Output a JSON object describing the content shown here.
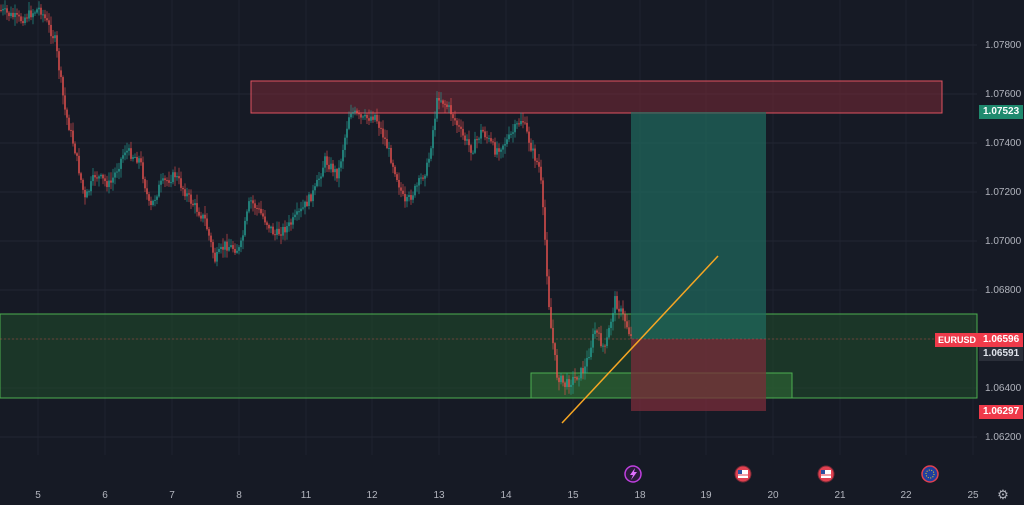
{
  "symbol": "EURUSD",
  "price_axis": {
    "ticks": [
      "1.07800",
      "1.07600",
      "1.07400",
      "1.07200",
      "1.07000",
      "1.06800",
      "1.06600",
      "1.06400",
      "1.06200"
    ],
    "tags": {
      "target": "1.07523",
      "last": "1.06596",
      "current": "1.06591",
      "stop": "1.06297"
    }
  },
  "time_axis": {
    "ticks": [
      "5",
      "6",
      "7",
      "8",
      "11",
      "12",
      "13",
      "14",
      "15",
      "18",
      "19",
      "20",
      "21",
      "22",
      "25"
    ]
  },
  "colors": {
    "background": "#161a25",
    "up": "#26a69a",
    "down": "#ef5350",
    "trendline": "#f5a623",
    "resistance_zone": "#7a2a36",
    "support_zone": "#1f4a2c",
    "profit_zone": "#1f6b5e",
    "loss_zone": "#7a2c3a"
  },
  "event_icons": [
    "lightning-icon",
    "us-flag-icon",
    "us-flag-icon",
    "eu-flag-icon"
  ]
}
